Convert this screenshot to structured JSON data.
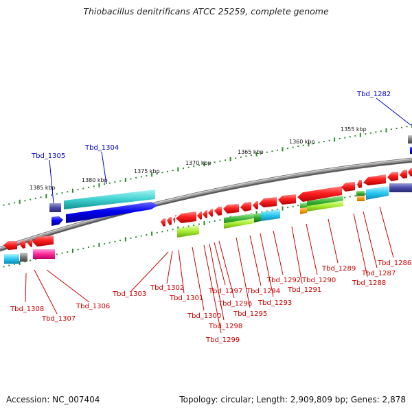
{
  "title": "Thiobacillus denitrificans ATCC 25259, complete genome",
  "footer": {
    "accession": "Accession: NC_007404",
    "stats": "Topology: circular; Length: 2,909,809 bp; Genes: 2,878"
  },
  "colors": {
    "backbone": "#8a8a8a",
    "scale_dots": "#2a8a2a",
    "label_blue": "#0000cc",
    "label_red": "#cc0000"
  },
  "scale_labels": [
    "1385 kbp",
    "1380 kbp",
    "1375 kbp",
    "1370 kbp",
    "1365 kbp",
    "1360 kbp",
    "1355 kbp"
  ],
  "genes_top": [
    "Tbd_1305",
    "Tbd_1304",
    "Tbd_1282"
  ],
  "genes_bottom": [
    "Tbd_1308",
    "Tbd_1307",
    "Tbd_1306",
    "Tbd_1303",
    "Tbd_1302",
    "Tbd_1301",
    "Tbd_1300",
    "Tbd_1299",
    "Tbd_1298",
    "Tbd_1297",
    "Tbd_1296",
    "Tbd_1295",
    "Tbd_1294",
    "Tbd_1293",
    "Tbd_1292",
    "Tbd_1291",
    "Tbd_1290",
    "Tbd_1289",
    "Tbd_1288",
    "Tbd_1287",
    "Tbd_1286"
  ]
}
